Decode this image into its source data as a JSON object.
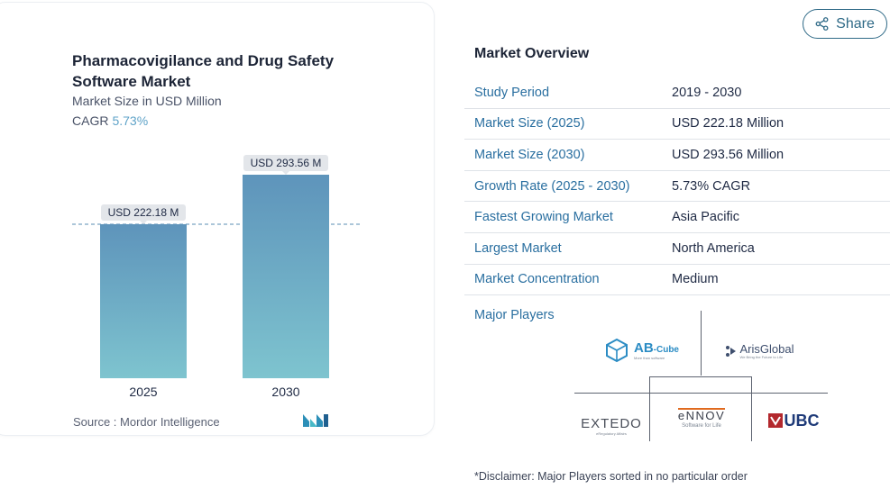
{
  "chart": {
    "title": "Pharmacovigilance and Drug Safety Software Market",
    "subtitle": "Market Size in USD Million",
    "cagr_label": "CAGR",
    "cagr_value": "5.73%",
    "source": "Source :  Mordor Intelligence"
  },
  "chart_data": {
    "type": "bar",
    "categories": [
      "2025",
      "2030"
    ],
    "values": [
      222.18,
      293.56
    ],
    "data_labels": [
      "USD 222.18 M",
      "USD 293.56 M"
    ],
    "title": "Pharmacovigilance and Drug Safety Software Market",
    "ylabel": "Market Size in USD Million",
    "grid": false,
    "reference_line_at": 222.18
  },
  "colors": {
    "bar_top": "#5e94bb",
    "bar_bottom": "#7ec4cf",
    "accent": "#5fa3c8",
    "label_bg": "#e3e6ea",
    "link_blue": "#2a6fa0"
  },
  "share": {
    "label": "Share",
    "icon": "share-icon"
  },
  "overview": {
    "title": "Market Overview",
    "rows": [
      {
        "label": "Study Period",
        "value": "2019 - 2030"
      },
      {
        "label": "Market Size (2025)",
        "value": "USD 222.18 Million"
      },
      {
        "label": "Market Size (2030)",
        "value": "USD 293.56 Million"
      },
      {
        "label": "Growth Rate (2025 - 2030)",
        "value": "5.73% CAGR"
      },
      {
        "label": "Fastest Growing Market",
        "value": "Asia Pacific"
      },
      {
        "label": "Largest Market",
        "value": "North America"
      },
      {
        "label": "Market Concentration",
        "value": "Medium"
      }
    ],
    "major_players_label": "Major Players",
    "players": {
      "abcube": {
        "name": "AB",
        "suffix": "-Cube",
        "tagline": "More than software"
      },
      "arisglobal": {
        "name": "ArisGlobal",
        "tagline": "We Bring the Future to Life"
      },
      "extedo": {
        "name": "EXTEDO",
        "tagline": "eRegulatory Affairs"
      },
      "ennov": {
        "name": "eNNOV",
        "tagline": "Software for Life"
      },
      "ubc": {
        "name": "UBC"
      }
    },
    "disclaimer": "*Disclaimer: Major Players sorted in no particular order"
  }
}
